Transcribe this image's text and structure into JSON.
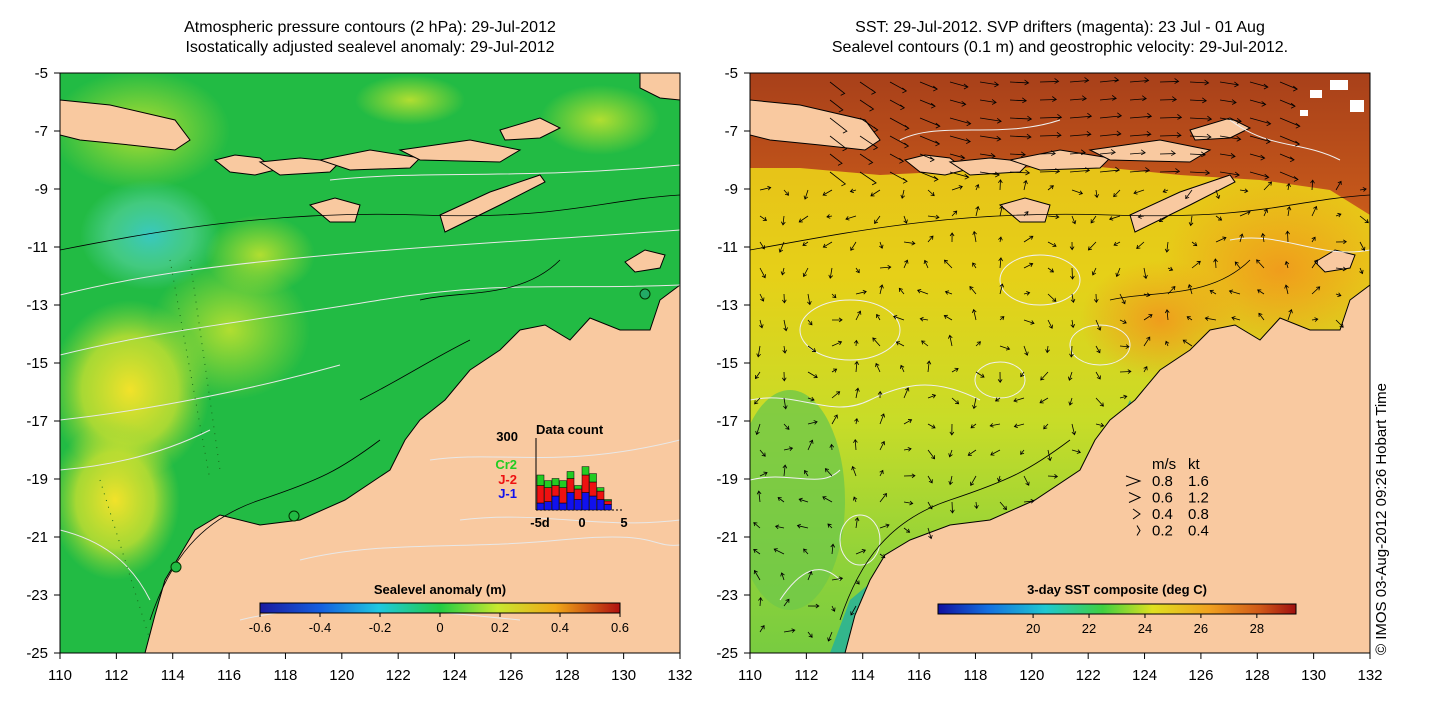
{
  "left_panel": {
    "title_line1": "Atmospheric pressure contours (2 hPa): 29-Jul-2012",
    "title_line2": "Isostatically adjusted sealevel anomaly: 29-Jul-2012",
    "colorbar": {
      "label": "Sealevel anomaly (m)",
      "ticks": [
        "-0.6",
        "-0.4",
        "-0.2",
        "0",
        "0.2",
        "0.4",
        "0.6"
      ],
      "range": [
        -0.6,
        0.6
      ]
    },
    "inset": {
      "title": "Data count",
      "ymax_label": "300",
      "x_labels": [
        "-5d",
        "0",
        "5"
      ],
      "legend": [
        {
          "label": "Cr2",
          "color": "#22cc22"
        },
        {
          "label": "J-2",
          "color": "#ee1111"
        },
        {
          "label": "J-1",
          "color": "#1111ee"
        }
      ]
    }
  },
  "right_panel": {
    "title_line1": "SST: 29-Jul-2012. SVP drifters (magenta): 23 Jul - 01 Aug",
    "title_line2": "Sealevel contours (0.1 m) and geostrophic velocity: 29-Jul-2012.",
    "colorbar": {
      "label": "3-day SST composite (deg C)",
      "ticks": [
        "20",
        "22",
        "24",
        "26",
        "28"
      ],
      "range": [
        16.6,
        29.4
      ]
    },
    "velocity_legend": {
      "header_ms": "m/s",
      "header_kt": "kt",
      "rows": [
        {
          "ms": "0.8",
          "kt": "1.6"
        },
        {
          "ms": "0.6",
          "kt": "1.2"
        },
        {
          "ms": "0.4",
          "kt": "0.8"
        },
        {
          "ms": "0.2",
          "kt": "0.4"
        }
      ]
    }
  },
  "axes": {
    "lon_ticks": [
      "110",
      "112",
      "114",
      "116",
      "118",
      "120",
      "122",
      "124",
      "126",
      "128",
      "130",
      "132"
    ],
    "lat_ticks": [
      "-5",
      "-7",
      "-9",
      "-11",
      "-13",
      "-15",
      "-17",
      "-19",
      "-21",
      "-23",
      "-25"
    ],
    "lon_range": [
      110,
      132
    ],
    "lat_range": [
      -25,
      -5
    ]
  },
  "credit": "© IMOS 03-Aug-2012 09:26 Hobart Time",
  "colors": {
    "land": "#f9c9a0",
    "ocean_sla": "#22bb44",
    "sst_warm": "#b83c14",
    "sst_mid": "#f2b21c"
  }
}
